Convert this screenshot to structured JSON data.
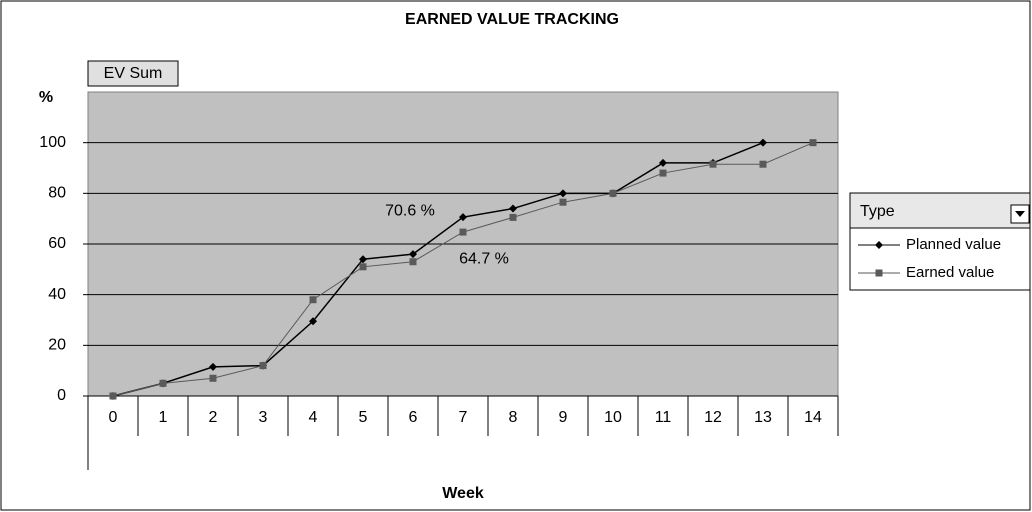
{
  "chart_data": {
    "type": "line",
    "title": "EARNED VALUE TRACKING",
    "button": "EV Sum",
    "ylabel": "%",
    "xlabel": "Week",
    "legend_title": "Type",
    "categories": [
      "0",
      "1",
      "2",
      "3",
      "4",
      "5",
      "6",
      "7",
      "8",
      "9",
      "10",
      "11",
      "12",
      "13",
      "14"
    ],
    "series": [
      {
        "name": "Planned value",
        "color": "#000000",
        "marker": "diamond",
        "values": [
          0,
          5,
          11.5,
          12,
          29.5,
          54,
          56,
          70.6,
          74,
          80,
          80,
          92,
          92,
          100,
          null
        ],
        "value_labels": [
          null,
          null,
          null,
          null,
          null,
          null,
          null,
          "70.6 %",
          null,
          null,
          null,
          null,
          null,
          null,
          null
        ]
      },
      {
        "name": "Earned value",
        "color": "#5a5a5a",
        "marker": "square",
        "values": [
          0,
          5,
          7,
          12,
          38,
          51,
          53,
          64.7,
          70.5,
          76.5,
          80,
          88,
          91.5,
          91.5,
          100
        ],
        "value_labels": [
          null,
          null,
          null,
          null,
          null,
          null,
          null,
          "64.7 %",
          null,
          null,
          null,
          null,
          null,
          null,
          null
        ]
      }
    ],
    "ylim": [
      0,
      120
    ],
    "yticks": [
      0,
      20,
      40,
      60,
      80,
      100
    ],
    "grid": true
  }
}
